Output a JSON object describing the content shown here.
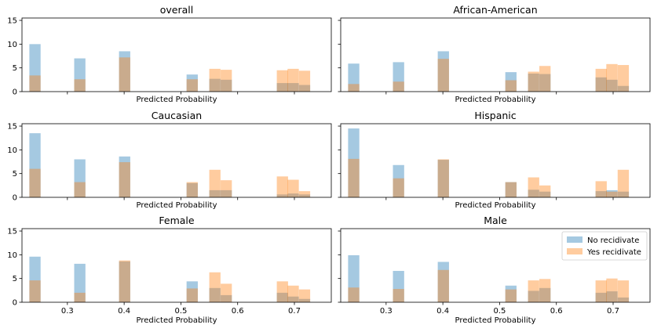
{
  "chart_data": {
    "type": "bar",
    "layout": "3x2 grid of overlaid histograms",
    "shared_xlabel": "Predicted Probability",
    "xlim": [
      0.22,
      0.765
    ],
    "ylim": [
      0,
      15.5
    ],
    "xticks": [
      0.3,
      0.4,
      0.5,
      0.6,
      0.7
    ],
    "yticks": [
      0,
      5,
      10,
      15
    ],
    "bin_width": 0.0198,
    "bin_starts": [
      0.233,
      0.253,
      0.273,
      0.292,
      0.312,
      0.332,
      0.352,
      0.372,
      0.391,
      0.411,
      0.431,
      0.451,
      0.471,
      0.49,
      0.51,
      0.53,
      0.55,
      0.57,
      0.589,
      0.609,
      0.629,
      0.649,
      0.669,
      0.688,
      0.708,
      0.728
    ],
    "legend": {
      "position": "upper right of last panel",
      "entries": [
        "No recidivate",
        "Yes recidivate"
      ]
    },
    "colors": {
      "no": "#1f77b4",
      "yes": "#ff7f0e",
      "alpha": 0.4,
      "overlap": "#c5a992"
    },
    "panels": [
      {
        "title": "overall",
        "series": [
          {
            "name": "No recidivate",
            "values": [
              10,
              0,
              0,
              0,
              7,
              0,
              0,
              0,
              8.5,
              0,
              0,
              0,
              0,
              0,
              3.6,
              0,
              2.7,
              2.5,
              0,
              0,
              0,
              0,
              1.8,
              1.8,
              1.4,
              0
            ]
          },
          {
            "name": "Yes recidivate",
            "values": [
              3.4,
              0,
              0,
              0,
              2.6,
              0,
              0,
              0,
              7.2,
              0,
              0,
              0,
              0,
              0,
              2.6,
              0,
              4.8,
              4.6,
              0,
              0,
              0,
              0,
              4.5,
              4.8,
              4.4,
              0
            ]
          }
        ]
      },
      {
        "title": "African-American",
        "series": [
          {
            "name": "No recidivate",
            "values": [
              5.9,
              0,
              0,
              0,
              6.2,
              0,
              0,
              0,
              8.5,
              0,
              0,
              0,
              0,
              0,
              4.1,
              0,
              3.8,
              3.7,
              0,
              0,
              0,
              0,
              3.0,
              2.5,
              1.2,
              0
            ]
          },
          {
            "name": "Yes recidivate",
            "values": [
              1.6,
              0,
              0,
              0,
              2.1,
              0,
              0,
              0,
              6.9,
              0,
              0,
              0,
              0,
              0,
              2.4,
              0,
              4.2,
              5.4,
              0,
              0,
              0,
              0,
              4.8,
              5.8,
              5.6,
              0
            ]
          }
        ]
      },
      {
        "title": "Caucasian",
        "series": [
          {
            "name": "No recidivate",
            "values": [
              13.5,
              0,
              0,
              0,
              8.0,
              0,
              0,
              0,
              8.6,
              0,
              0,
              0,
              0,
              0,
              3.0,
              0,
              1.5,
              1.5,
              0,
              0,
              0,
              0,
              0.6,
              0.8,
              0.6,
              0
            ]
          },
          {
            "name": "Yes recidivate",
            "values": [
              6.0,
              0,
              0,
              0,
              3.2,
              0,
              0,
              0,
              7.4,
              0,
              0,
              0,
              0,
              0,
              3.2,
              0,
              5.8,
              3.6,
              0,
              0,
              0,
              0,
              4.4,
              3.7,
              1.3,
              0
            ]
          }
        ]
      },
      {
        "title": "Hispanic",
        "series": [
          {
            "name": "No recidivate",
            "values": [
              14.5,
              0,
              0,
              0,
              6.8,
              0,
              0,
              0,
              7.9,
              0,
              0,
              0,
              0,
              0,
              3.2,
              0,
              1.6,
              1.2,
              0,
              0,
              0,
              0,
              1.3,
              1.5,
              1.2,
              0
            ]
          },
          {
            "name": "Yes recidivate",
            "values": [
              8.1,
              0,
              0,
              0,
              4.0,
              0,
              0,
              0,
              8.0,
              0,
              0,
              0,
              0,
              0,
              3.2,
              0,
              4.2,
              2.5,
              0,
              0,
              0,
              0,
              3.4,
              1.2,
              5.8,
              0
            ]
          }
        ]
      },
      {
        "title": "Female",
        "series": [
          {
            "name": "No recidivate",
            "values": [
              9.6,
              0,
              0,
              0,
              8.1,
              0,
              0,
              0,
              8.6,
              0,
              0,
              0,
              0,
              0,
              4.4,
              0,
              3.0,
              1.5,
              0,
              0,
              0,
              0,
              2.0,
              1.2,
              0.7,
              0
            ]
          },
          {
            "name": "Yes recidivate",
            "values": [
              4.6,
              0,
              0,
              0,
              2.0,
              0,
              0,
              0,
              8.8,
              0,
              0,
              0,
              0,
              0,
              2.9,
              0,
              6.3,
              3.9,
              0,
              0,
              0,
              0,
              4.4,
              3.5,
              2.7,
              0
            ]
          }
        ]
      },
      {
        "title": "Male",
        "series": [
          {
            "name": "No recidivate",
            "values": [
              9.9,
              0,
              0,
              0,
              6.6,
              0,
              0,
              0,
              8.5,
              0,
              0,
              0,
              0,
              0,
              3.5,
              0,
              2.4,
              3.0,
              0,
              0,
              0,
              0,
              2.0,
              2.3,
              1.0,
              0
            ]
          },
          {
            "name": "Yes recidivate",
            "values": [
              3.1,
              0,
              0,
              0,
              2.8,
              0,
              0,
              0,
              6.8,
              0,
              0,
              0,
              0,
              0,
              2.7,
              0,
              4.6,
              4.9,
              0,
              0,
              0,
              0,
              4.6,
              5.0,
              4.6,
              0
            ]
          }
        ]
      }
    ]
  }
}
